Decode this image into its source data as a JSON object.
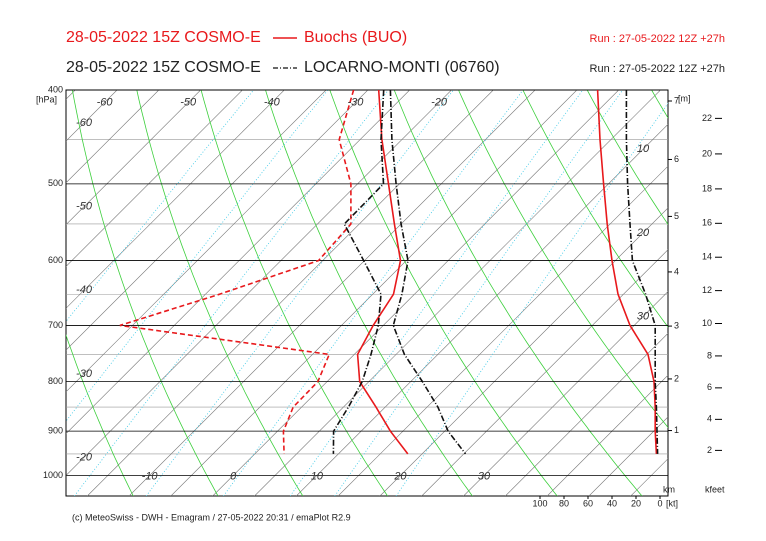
{
  "chart_data": {
    "type": "skewt",
    "ylabel": "[hPa]",
    "ylim": [
      1050,
      400
    ],
    "yticks": [
      400,
      500,
      600,
      700,
      800,
      900,
      1000
    ],
    "xlim": [
      -20,
      52
    ],
    "pressure": [
      400,
      450,
      500,
      550,
      600,
      650,
      700,
      750,
      800,
      850,
      900,
      950
    ],
    "stations": [
      {
        "prefix": "28-05-2022 15Z COSMO-E",
        "name": "Buochs (BUO)",
        "run": "Run : 27-05-2022 12Z +27h",
        "color": "#e8191c",
        "style": "solid",
        "temperature": [
          -28.7,
          -22.4,
          -16.3,
          -10.8,
          -5.7,
          -2.5,
          -1.2,
          0.4,
          3.9,
          8.9,
          13.5,
          18.3
        ],
        "dewpoint": [
          -31.7,
          -27.5,
          -20.8,
          -16.0,
          -15.5,
          -23.3,
          -31.5,
          -3.0,
          -1.1,
          -1.0,
          0.7,
          3.5
        ],
        "wind_speed": [
          52,
          50,
          47,
          44,
          40,
          35,
          25,
          10,
          5,
          4,
          4,
          3
        ]
      },
      {
        "prefix": "28-05-2022 15Z COSMO-E",
        "name": "LOCARNO-MONTI (06760)",
        "run": "Run : 27-05-2022 12Z +27h",
        "color": "#111111",
        "style": "dashdot",
        "temperature": [
          -27.3,
          -21.2,
          -15.4,
          -10.0,
          -4.8,
          -1.5,
          1.2,
          6.0,
          11.4,
          16.3,
          20.4,
          25.2
        ],
        "dewpoint": [
          -28.1,
          -22.5,
          -16.9,
          -16.8,
          -10.1,
          -4.0,
          -0.6,
          2.0,
          4.2,
          5.6,
          6.7,
          9.4
        ],
        "wind_speed": [
          28,
          28,
          27,
          25,
          23,
          12,
          4,
          4,
          4,
          3,
          2.5,
          2
        ]
      }
    ],
    "isotherm_labels_top": [
      -60,
      -50,
      -40,
      -30,
      -20
    ],
    "isotherm_labels_left": [
      -60,
      -50,
      -40,
      -30,
      -20
    ],
    "isotherm_labels_bottom": [
      -10,
      0,
      10,
      20,
      30
    ],
    "isotherm_labels_right": [
      10,
      20,
      30
    ],
    "height_unit": "[m]",
    "height_ticks_km": [
      1,
      2,
      3,
      4,
      5,
      6,
      7
    ],
    "height_km_label": "km",
    "height_ticks_kfeet": [
      2,
      4,
      6,
      8,
      10,
      12,
      14,
      16,
      18,
      20,
      22
    ],
    "height_kfeet_label": "kfeet",
    "wind_xlim": [
      100,
      0
    ],
    "wind_ticks": [
      100,
      80,
      60,
      40,
      20,
      0
    ],
    "wind_unit": "[kt]",
    "footer": "(c) MeteoSwiss - DWH - Emagram / 27-05-2022  20:31 / emaPlot R2.9"
  }
}
